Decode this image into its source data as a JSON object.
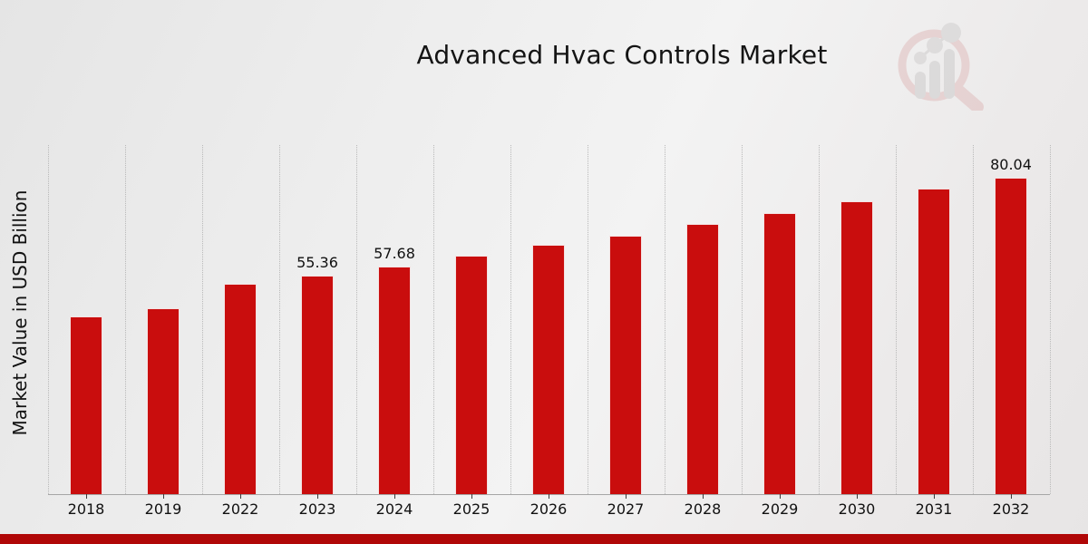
{
  "title": "Advanced Hvac Controls Market",
  "ylabel": "Market Value in USD Billion",
  "branding": {
    "logo_icon": "magnifier-bar-chart-watermark",
    "logo_ring_color": "#c56a6a",
    "logo_bars_color": "#8d8d8d"
  },
  "footer": {
    "accent_color": "#b00707"
  },
  "chart_data": {
    "type": "bar",
    "title": "Advanced Hvac Controls Market",
    "xlabel": "",
    "ylabel": "Market Value in USD Billion",
    "categories": [
      "2018",
      "2019",
      "2022",
      "2023",
      "2024",
      "2025",
      "2026",
      "2027",
      "2028",
      "2029",
      "2030",
      "2031",
      "2032"
    ],
    "values": [
      44.9,
      47.1,
      53.3,
      55.36,
      57.68,
      60.3,
      63.0,
      65.4,
      68.3,
      71.1,
      74.1,
      77.3,
      80.04
    ],
    "value_labels_shown": [
      "",
      "",
      "",
      "55.36",
      "57.68",
      "",
      "",
      "",
      "",
      "",
      "",
      "",
      "80.04"
    ],
    "bar_color": "#c90d0d",
    "ylim": [
      0,
      88
    ],
    "grid": "vertical-dotted-between-categories",
    "legend": "none",
    "y_tick_labels": "none"
  }
}
